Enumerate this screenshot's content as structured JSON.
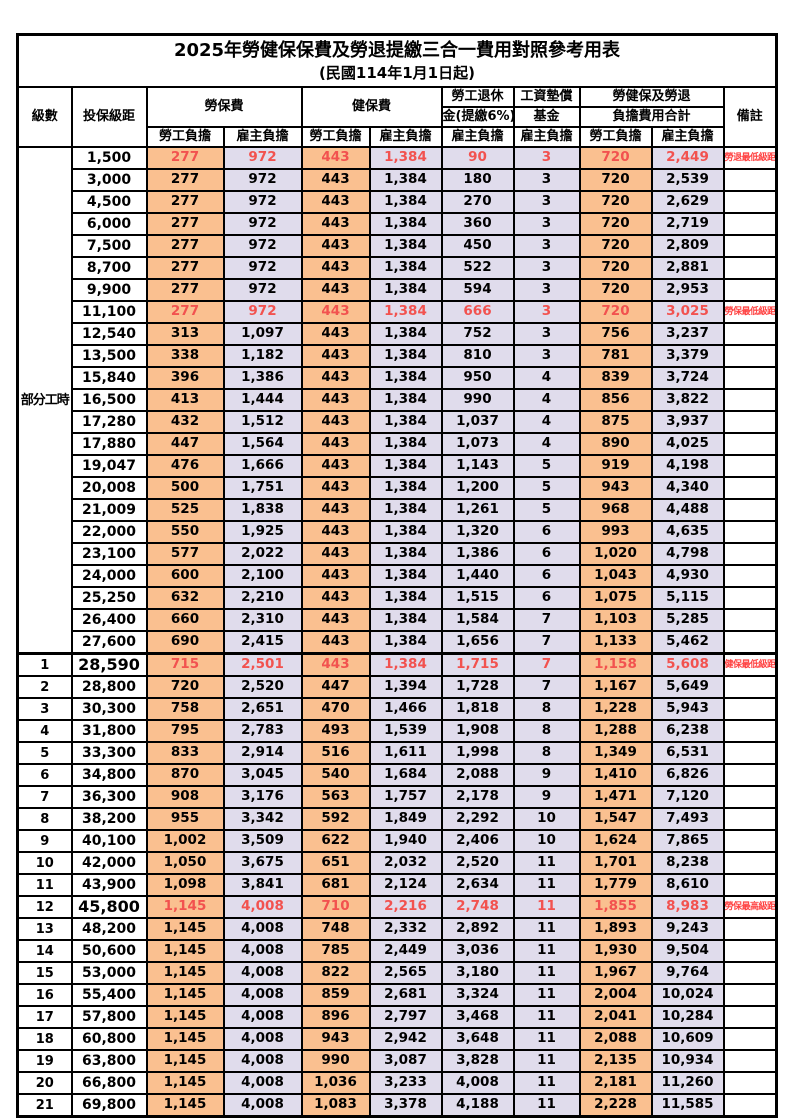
{
  "title": "2025年勞健保保費及勞退提繳三合一費用對照參考用表",
  "subtitle": "(民國114年1月1日起)",
  "colors": {
    "employee_bg": "#FAC090",
    "employer_bg": "#E0DCEC",
    "highlight_red": "#F2524F",
    "remark_red": "#FF4040",
    "border": "#000000",
    "background": "#FFFFFF"
  },
  "header": {
    "level": "級數",
    "bracket": "投保級距",
    "labor_insurance": "勞保費",
    "health_insurance": "健保費",
    "pension_line1": "勞工退休",
    "pension_line2": "金(提繳6%)",
    "wage_fund_line1": "工資墊償",
    "wage_fund_line2": "基金",
    "total_line1": "勞健保及勞退",
    "total_line2": "負擔費用合計",
    "remark": "備註",
    "employee": "勞工負擔",
    "employer": "雇主負擔"
  },
  "table": {
    "part_time_label": "部分工時",
    "value_column_keys": [
      "labor-insurance-employee",
      "labor-insurance-employer",
      "health-insurance-employee",
      "health-insurance-employer",
      "pension-employer",
      "wage-fund-employer",
      "total-employee",
      "total-employer"
    ],
    "rows": [
      {
        "level": "",
        "bracket": "1,500",
        "values": [
          "277",
          "972",
          "443",
          "1,384",
          "90",
          "3",
          "720",
          "2,449"
        ],
        "remark": "勞退最低級距",
        "highlight": true,
        "emphasis": false
      },
      {
        "level": "",
        "bracket": "3,000",
        "values": [
          "277",
          "972",
          "443",
          "1,384",
          "180",
          "3",
          "720",
          "2,539"
        ],
        "remark": "",
        "highlight": false,
        "emphasis": false
      },
      {
        "level": "",
        "bracket": "4,500",
        "values": [
          "277",
          "972",
          "443",
          "1,384",
          "270",
          "3",
          "720",
          "2,629"
        ],
        "remark": "",
        "highlight": false,
        "emphasis": false
      },
      {
        "level": "",
        "bracket": "6,000",
        "values": [
          "277",
          "972",
          "443",
          "1,384",
          "360",
          "3",
          "720",
          "2,719"
        ],
        "remark": "",
        "highlight": false,
        "emphasis": false
      },
      {
        "level": "",
        "bracket": "7,500",
        "values": [
          "277",
          "972",
          "443",
          "1,384",
          "450",
          "3",
          "720",
          "2,809"
        ],
        "remark": "",
        "highlight": false,
        "emphasis": false
      },
      {
        "level": "",
        "bracket": "8,700",
        "values": [
          "277",
          "972",
          "443",
          "1,384",
          "522",
          "3",
          "720",
          "2,881"
        ],
        "remark": "",
        "highlight": false,
        "emphasis": false
      },
      {
        "level": "",
        "bracket": "9,900",
        "values": [
          "277",
          "972",
          "443",
          "1,384",
          "594",
          "3",
          "720",
          "2,953"
        ],
        "remark": "",
        "highlight": false,
        "emphasis": false
      },
      {
        "level": "",
        "bracket": "11,100",
        "values": [
          "277",
          "972",
          "443",
          "1,384",
          "666",
          "3",
          "720",
          "3,025"
        ],
        "remark": "勞保最低級距",
        "highlight": true,
        "emphasis": false
      },
      {
        "level": "",
        "bracket": "12,540",
        "values": [
          "313",
          "1,097",
          "443",
          "1,384",
          "752",
          "3",
          "756",
          "3,237"
        ],
        "remark": "",
        "highlight": false,
        "emphasis": false
      },
      {
        "level": "",
        "bracket": "13,500",
        "values": [
          "338",
          "1,182",
          "443",
          "1,384",
          "810",
          "3",
          "781",
          "3,379"
        ],
        "remark": "",
        "highlight": false,
        "emphasis": false
      },
      {
        "level": "",
        "bracket": "15,840",
        "values": [
          "396",
          "1,386",
          "443",
          "1,384",
          "950",
          "4",
          "839",
          "3,724"
        ],
        "remark": "",
        "highlight": false,
        "emphasis": false
      },
      {
        "level": "",
        "bracket": "16,500",
        "values": [
          "413",
          "1,444",
          "443",
          "1,384",
          "990",
          "4",
          "856",
          "3,822"
        ],
        "remark": "",
        "highlight": false,
        "emphasis": false
      },
      {
        "level": "",
        "bracket": "17,280",
        "values": [
          "432",
          "1,512",
          "443",
          "1,384",
          "1,037",
          "4",
          "875",
          "3,937"
        ],
        "remark": "",
        "highlight": false,
        "emphasis": false
      },
      {
        "level": "",
        "bracket": "17,880",
        "values": [
          "447",
          "1,564",
          "443",
          "1,384",
          "1,073",
          "4",
          "890",
          "4,025"
        ],
        "remark": "",
        "highlight": false,
        "emphasis": false
      },
      {
        "level": "",
        "bracket": "19,047",
        "values": [
          "476",
          "1,666",
          "443",
          "1,384",
          "1,143",
          "5",
          "919",
          "4,198"
        ],
        "remark": "",
        "highlight": false,
        "emphasis": false
      },
      {
        "level": "",
        "bracket": "20,008",
        "values": [
          "500",
          "1,751",
          "443",
          "1,384",
          "1,200",
          "5",
          "943",
          "4,340"
        ],
        "remark": "",
        "highlight": false,
        "emphasis": false
      },
      {
        "level": "",
        "bracket": "21,009",
        "values": [
          "525",
          "1,838",
          "443",
          "1,384",
          "1,261",
          "5",
          "968",
          "4,488"
        ],
        "remark": "",
        "highlight": false,
        "emphasis": false
      },
      {
        "level": "",
        "bracket": "22,000",
        "values": [
          "550",
          "1,925",
          "443",
          "1,384",
          "1,320",
          "6",
          "993",
          "4,635"
        ],
        "remark": "",
        "highlight": false,
        "emphasis": false
      },
      {
        "level": "",
        "bracket": "23,100",
        "values": [
          "577",
          "2,022",
          "443",
          "1,384",
          "1,386",
          "6",
          "1,020",
          "4,798"
        ],
        "remark": "",
        "highlight": false,
        "emphasis": false
      },
      {
        "level": "",
        "bracket": "24,000",
        "values": [
          "600",
          "2,100",
          "443",
          "1,384",
          "1,440",
          "6",
          "1,043",
          "4,930"
        ],
        "remark": "",
        "highlight": false,
        "emphasis": false
      },
      {
        "level": "",
        "bracket": "25,250",
        "values": [
          "632",
          "2,210",
          "443",
          "1,384",
          "1,515",
          "6",
          "1,075",
          "5,115"
        ],
        "remark": "",
        "highlight": false,
        "emphasis": false
      },
      {
        "level": "",
        "bracket": "26,400",
        "values": [
          "660",
          "2,310",
          "443",
          "1,384",
          "1,584",
          "7",
          "1,103",
          "5,285"
        ],
        "remark": "",
        "highlight": false,
        "emphasis": false
      },
      {
        "level": "",
        "bracket": "27,600",
        "values": [
          "690",
          "2,415",
          "443",
          "1,384",
          "1,656",
          "7",
          "1,133",
          "5,462"
        ],
        "remark": "",
        "highlight": false,
        "emphasis": false
      },
      {
        "level": "1",
        "bracket": "28,590",
        "values": [
          "715",
          "2,501",
          "443",
          "1,384",
          "1,715",
          "7",
          "1,158",
          "5,608"
        ],
        "remark": "健保最低級距",
        "highlight": true,
        "emphasis": true
      },
      {
        "level": "2",
        "bracket": "28,800",
        "values": [
          "720",
          "2,520",
          "447",
          "1,394",
          "1,728",
          "7",
          "1,167",
          "5,649"
        ],
        "remark": "",
        "highlight": false,
        "emphasis": false
      },
      {
        "level": "3",
        "bracket": "30,300",
        "values": [
          "758",
          "2,651",
          "470",
          "1,466",
          "1,818",
          "8",
          "1,228",
          "5,943"
        ],
        "remark": "",
        "highlight": false,
        "emphasis": false
      },
      {
        "level": "4",
        "bracket": "31,800",
        "values": [
          "795",
          "2,783",
          "493",
          "1,539",
          "1,908",
          "8",
          "1,288",
          "6,238"
        ],
        "remark": "",
        "highlight": false,
        "emphasis": false
      },
      {
        "level": "5",
        "bracket": "33,300",
        "values": [
          "833",
          "2,914",
          "516",
          "1,611",
          "1,998",
          "8",
          "1,349",
          "6,531"
        ],
        "remark": "",
        "highlight": false,
        "emphasis": false
      },
      {
        "level": "6",
        "bracket": "34,800",
        "values": [
          "870",
          "3,045",
          "540",
          "1,684",
          "2,088",
          "9",
          "1,410",
          "6,826"
        ],
        "remark": "",
        "highlight": false,
        "emphasis": false
      },
      {
        "level": "7",
        "bracket": "36,300",
        "values": [
          "908",
          "3,176",
          "563",
          "1,757",
          "2,178",
          "9",
          "1,471",
          "7,120"
        ],
        "remark": "",
        "highlight": false,
        "emphasis": false
      },
      {
        "level": "8",
        "bracket": "38,200",
        "values": [
          "955",
          "3,342",
          "592",
          "1,849",
          "2,292",
          "10",
          "1,547",
          "7,493"
        ],
        "remark": "",
        "highlight": false,
        "emphasis": false
      },
      {
        "level": "9",
        "bracket": "40,100",
        "values": [
          "1,002",
          "3,509",
          "622",
          "1,940",
          "2,406",
          "10",
          "1,624",
          "7,865"
        ],
        "remark": "",
        "highlight": false,
        "emphasis": false
      },
      {
        "level": "10",
        "bracket": "42,000",
        "values": [
          "1,050",
          "3,675",
          "651",
          "2,032",
          "2,520",
          "11",
          "1,701",
          "8,238"
        ],
        "remark": "",
        "highlight": false,
        "emphasis": false
      },
      {
        "level": "11",
        "bracket": "43,900",
        "values": [
          "1,098",
          "3,841",
          "681",
          "2,124",
          "2,634",
          "11",
          "1,779",
          "8,610"
        ],
        "remark": "",
        "highlight": false,
        "emphasis": false
      },
      {
        "level": "12",
        "bracket": "45,800",
        "values": [
          "1,145",
          "4,008",
          "710",
          "2,216",
          "2,748",
          "11",
          "1,855",
          "8,983"
        ],
        "remark": "勞保最高級距",
        "highlight": true,
        "emphasis": true
      },
      {
        "level": "13",
        "bracket": "48,200",
        "values": [
          "1,145",
          "4,008",
          "748",
          "2,332",
          "2,892",
          "11",
          "1,893",
          "9,243"
        ],
        "remark": "",
        "highlight": false,
        "emphasis": false
      },
      {
        "level": "14",
        "bracket": "50,600",
        "values": [
          "1,145",
          "4,008",
          "785",
          "2,449",
          "3,036",
          "11",
          "1,930",
          "9,504"
        ],
        "remark": "",
        "highlight": false,
        "emphasis": false
      },
      {
        "level": "15",
        "bracket": "53,000",
        "values": [
          "1,145",
          "4,008",
          "822",
          "2,565",
          "3,180",
          "11",
          "1,967",
          "9,764"
        ],
        "remark": "",
        "highlight": false,
        "emphasis": false
      },
      {
        "level": "16",
        "bracket": "55,400",
        "values": [
          "1,145",
          "4,008",
          "859",
          "2,681",
          "3,324",
          "11",
          "2,004",
          "10,024"
        ],
        "remark": "",
        "highlight": false,
        "emphasis": false
      },
      {
        "level": "17",
        "bracket": "57,800",
        "values": [
          "1,145",
          "4,008",
          "896",
          "2,797",
          "3,468",
          "11",
          "2,041",
          "10,284"
        ],
        "remark": "",
        "highlight": false,
        "emphasis": false
      },
      {
        "level": "18",
        "bracket": "60,800",
        "values": [
          "1,145",
          "4,008",
          "943",
          "2,942",
          "3,648",
          "11",
          "2,088",
          "10,609"
        ],
        "remark": "",
        "highlight": false,
        "emphasis": false
      },
      {
        "level": "19",
        "bracket": "63,800",
        "values": [
          "1,145",
          "4,008",
          "990",
          "3,087",
          "3,828",
          "11",
          "2,135",
          "10,934"
        ],
        "remark": "",
        "highlight": false,
        "emphasis": false
      },
      {
        "level": "20",
        "bracket": "66,800",
        "values": [
          "1,145",
          "4,008",
          "1,036",
          "3,233",
          "4,008",
          "11",
          "2,181",
          "11,260"
        ],
        "remark": "",
        "highlight": false,
        "emphasis": false
      },
      {
        "level": "21",
        "bracket": "69,800",
        "values": [
          "1,145",
          "4,008",
          "1,083",
          "3,378",
          "4,188",
          "11",
          "2,228",
          "11,585"
        ],
        "remark": "",
        "highlight": false,
        "emphasis": false
      }
    ]
  }
}
